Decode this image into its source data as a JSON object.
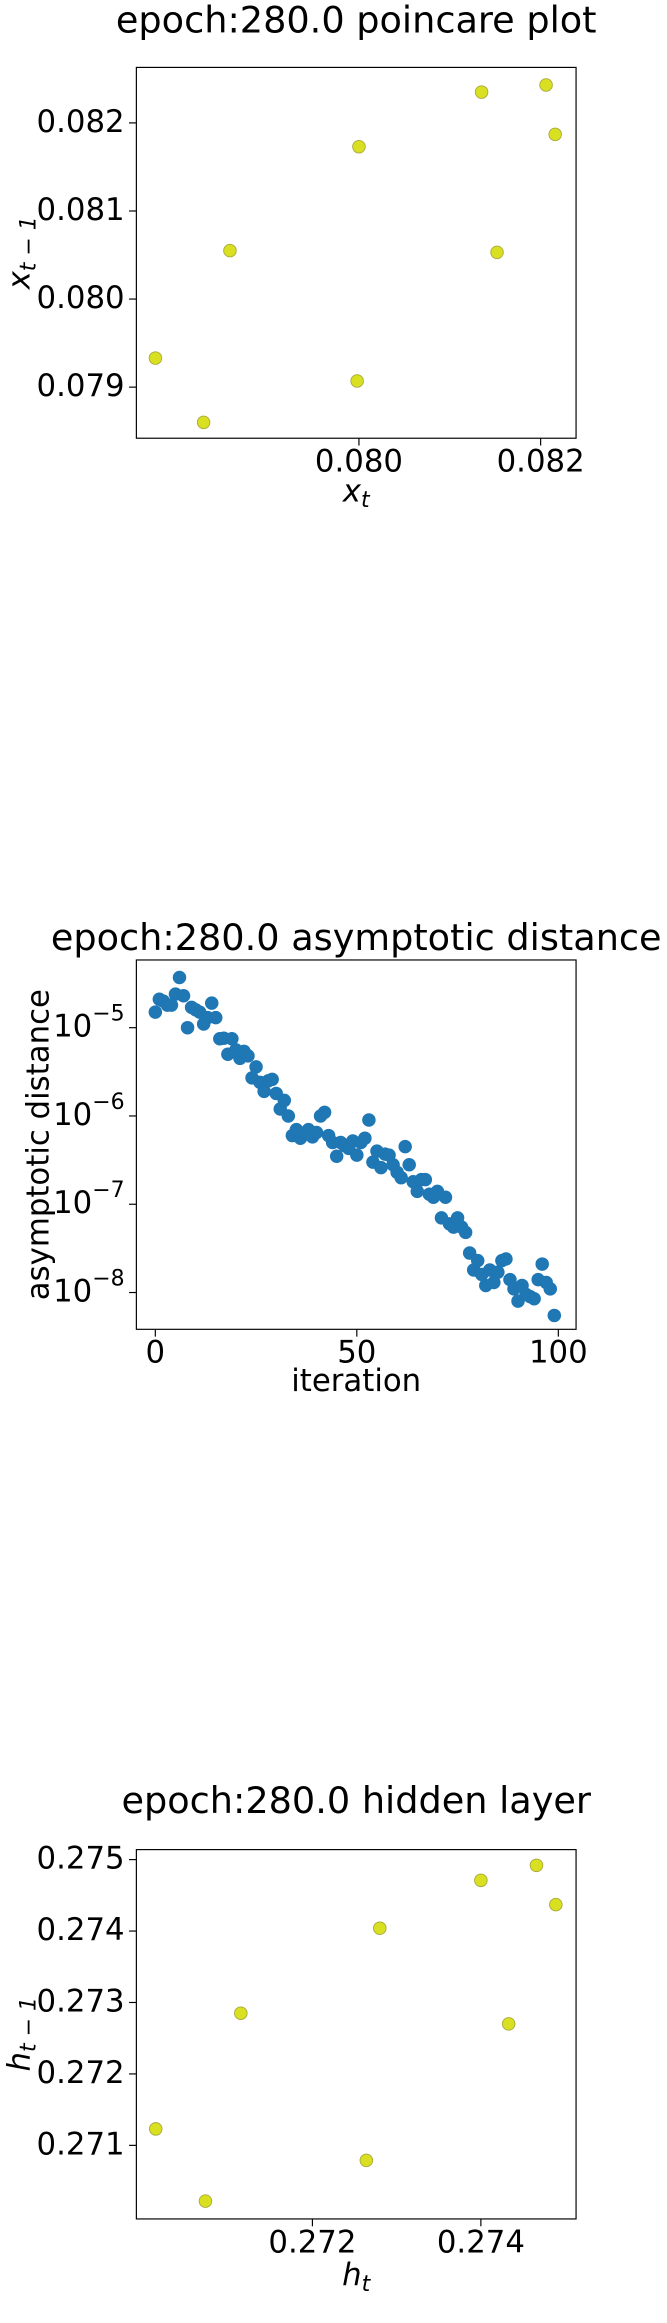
{
  "chart_data": [
    {
      "type": "scatter",
      "title": "epoch:280.0 poincare plot",
      "xlabel": "x",
      "xlabel_sub": "t",
      "ylabel": "x",
      "ylabel_sub": "t − 1",
      "color": "#d9e021",
      "edgecolor": "#a8a83a",
      "log_y": false,
      "x": [
        0.07776,
        0.07829,
        0.07858,
        0.08,
        0.07998,
        0.08135,
        0.08152,
        0.08206,
        0.08216
      ],
      "y": [
        0.07933,
        0.0786,
        0.08055,
        0.08173,
        0.07907,
        0.08235,
        0.08053,
        0.08243,
        0.08187
      ],
      "xlim": [
        0.07755,
        0.08239
      ],
      "xticks": [
        {
          "value": 0.08,
          "label": "0.080"
        },
        {
          "value": 0.082,
          "label": "0.082"
        }
      ],
      "ylim": [
        0.07842,
        0.08263
      ],
      "yticks": [
        {
          "value": 0.079,
          "label": "0.079"
        },
        {
          "value": 0.08,
          "label": "0.080"
        },
        {
          "value": 0.081,
          "label": "0.081"
        },
        {
          "value": 0.082,
          "label": "0.082"
        }
      ]
    },
    {
      "type": "scatter",
      "title": "epoch:280.0 asymptotic distance",
      "xlabel": "iteration",
      "ylabel": "asymptotic distance",
      "color": "#1f77b4",
      "edgecolor": "#1f77b4",
      "log_y": true,
      "x": [
        0,
        1,
        2,
        3,
        4,
        5,
        6,
        7,
        8,
        9,
        10,
        11,
        12,
        13,
        14,
        15,
        16,
        17,
        18,
        19,
        20,
        21,
        22,
        23,
        24,
        25,
        26,
        27,
        28,
        29,
        30,
        31,
        32,
        33,
        34,
        35,
        36,
        37,
        38,
        39,
        40,
        41,
        42,
        43,
        44,
        45,
        46,
        47,
        48,
        49,
        50,
        51,
        52,
        53,
        54,
        55,
        56,
        57,
        58,
        59,
        60,
        61,
        62,
        63,
        64,
        65,
        66,
        67,
        68,
        69,
        70,
        71,
        72,
        73,
        74,
        75,
        76,
        77,
        78,
        79,
        80,
        81,
        82,
        83,
        84,
        85,
        86,
        87,
        88,
        89,
        90,
        91,
        92,
        93,
        94,
        95,
        96,
        97,
        98,
        99
      ],
      "y": [
        1.5e-05,
        2.1e-05,
        2e-05,
        1.8e-05,
        1.8e-05,
        2.4e-05,
        3.7e-05,
        2.3e-05,
        1e-05,
        1.7e-05,
        1.6e-05,
        1.5e-05,
        1.1e-05,
        1.3e-05,
        1.9e-05,
        1.3e-05,
        7.5e-06,
        7.6e-06,
        5e-06,
        7.5e-06,
        5.6e-06,
        4.5e-06,
        5.4e-06,
        4.8e-06,
        2.7e-06,
        3.6e-06,
        2.4e-06,
        1.9e-06,
        2.5e-06,
        2.6e-06,
        1.8e-06,
        1.2e-06,
        1.5e-06,
        1e-06,
        6e-07,
        7e-07,
        5.6e-07,
        6.2e-07,
        7e-07,
        5.8e-07,
        6.5e-07,
        1e-06,
        1.1e-06,
        6e-07,
        5e-07,
        3.5e-07,
        5e-07,
        4.6e-07,
        4.3e-07,
        5.2e-07,
        3.6e-07,
        5e-07,
        5.6e-07,
        9e-07,
        3e-07,
        4e-07,
        2.6e-07,
        3.7e-07,
        3.6e-07,
        2.8e-07,
        2.3e-07,
        2e-07,
        4.5e-07,
        2.8e-07,
        1.8e-07,
        1.4e-07,
        1.9e-07,
        1.9e-07,
        1.3e-07,
        1.2e-07,
        1.4e-07,
        7e-08,
        1.2e-07,
        6e-08,
        5.5e-08,
        7e-08,
        5.5e-08,
        4.8e-08,
        2.8e-08,
        1.8e-08,
        2.3e-08,
        1.6e-08,
        1.2e-08,
        1.8e-08,
        1.3e-08,
        1.7e-08,
        2.3e-08,
        2.4e-08,
        1.4e-08,
        1.1e-08,
        8e-09,
        1.2e-08,
        9.5e-09,
        9e-09,
        8.5e-09,
        1.4e-08,
        2.1e-08,
        1.3e-08,
        1.1e-08,
        5.5e-09
      ],
      "xlim": [
        -4.7,
        104.4
      ],
      "xticks": [
        0,
        50,
        100
      ],
      "ylim": [
        5.85e-05,
        3.83e-09
      ],
      "yticks": [
        {
          "value": 1e-08,
          "label": "10",
          "exp": "−8"
        },
        {
          "value": 1e-07,
          "label": "10",
          "exp": "−7"
        },
        {
          "value": 1e-06,
          "label": "10",
          "exp": "−6"
        },
        {
          "value": 1e-05,
          "label": "10",
          "exp": "−5"
        }
      ]
    },
    {
      "type": "scatter",
      "title": "epoch:280.0 hidden layer",
      "xlabel": "h",
      "xlabel_sub": "t",
      "ylabel": "h",
      "ylabel_sub": "t − 1",
      "color": "#d9e021",
      "edgecolor": "#a8a83a",
      "log_y": false,
      "x": [
        0.27014,
        0.27073,
        0.27115,
        0.2728,
        0.27264,
        0.274,
        0.27433,
        0.27466,
        0.27489
      ],
      "y": [
        0.27123,
        0.27022,
        0.27285,
        0.27404,
        0.27079,
        0.27471,
        0.2727,
        0.27492,
        0.27437
      ],
      "xlim": [
        0.26991,
        0.27513
      ],
      "xticks": [
        {
          "value": 0.272,
          "label": "0.272"
        },
        {
          "value": 0.274,
          "label": "0.274"
        }
      ],
      "ylim": [
        0.26997,
        0.27514
      ],
      "yticks": [
        {
          "value": 0.271,
          "label": "0.271"
        },
        {
          "value": 0.272,
          "label": "0.272"
        },
        {
          "value": 0.273,
          "label": "0.273"
        },
        {
          "value": 0.274,
          "label": "0.274"
        },
        {
          "value": 0.275,
          "label": "0.275"
        }
      ]
    }
  ]
}
